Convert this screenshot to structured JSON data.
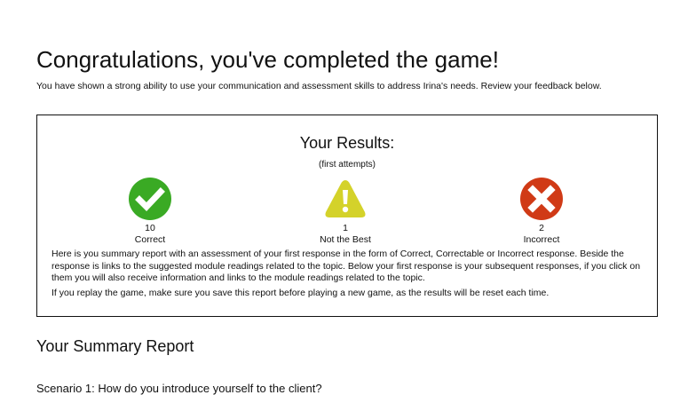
{
  "header": {
    "title": "Congratulations, you've completed the game!",
    "intro": "You have shown a strong ability to use your communication and assessment skills to address Irina's needs. Review your feedback below."
  },
  "results": {
    "title": "Your Results:",
    "subtitle": "(first attempts)",
    "stats": [
      {
        "icon": "check-circle-icon",
        "count": "10",
        "label": "Correct",
        "color": "#3aaa24"
      },
      {
        "icon": "warning-triangle-icon",
        "count": "1",
        "label": "Not the Best",
        "color": "#d4d22a"
      },
      {
        "icon": "x-circle-icon",
        "count": "2",
        "label": "Incorrect",
        "color": "#d03a16"
      }
    ],
    "paragraph1": "Here is you summary report with an assessment of your first response in the form of Correct, Correctable or Incorrect response. Beside the response is links to the suggested module readings related to the topic. Below your first response is your subsequent responses, if you click on them you will also receive information and links to the module readings related to the topic.",
    "paragraph2": "If you replay the game, make sure you save this report before playing a new game, as the results will be reset each time."
  },
  "summary": {
    "title": "Your Summary Report",
    "scenario1": "Scenario 1: How do you introduce yourself to the client?"
  }
}
